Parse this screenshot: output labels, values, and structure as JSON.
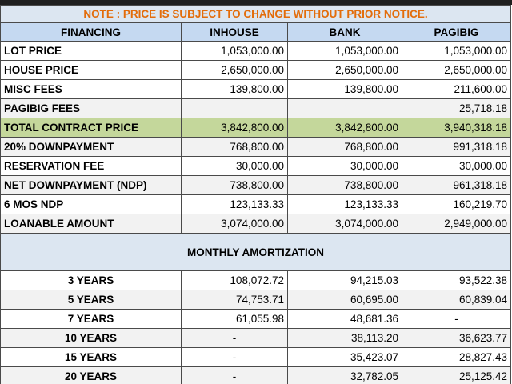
{
  "note": "NOTE : PRICE IS SUBJECT TO CHANGE WITHOUT PRIOR NOTICE.",
  "headers": [
    "FINANCING",
    "INHOUSE",
    "BANK",
    "PAGIBIG"
  ],
  "rows": [
    {
      "label": "LOT PRICE",
      "inhouse": "1,053,000.00",
      "bank": "1,053,000.00",
      "pagibig": "1,053,000.00"
    },
    {
      "label": "HOUSE PRICE",
      "inhouse": "2,650,000.00",
      "bank": "2,650,000.00",
      "pagibig": "2,650,000.00"
    },
    {
      "label": "MISC FEES",
      "inhouse": "139,800.00",
      "bank": "139,800.00",
      "pagibig": "211,600.00"
    },
    {
      "label": "PAGIBIG FEES",
      "inhouse": "",
      "bank": "",
      "pagibig": "25,718.18"
    },
    {
      "label": "TOTAL CONTRACT PRICE",
      "inhouse": "3,842,800.00",
      "bank": "3,842,800.00",
      "pagibig": "3,940,318.18"
    },
    {
      "label": "20% DOWNPAYMENT",
      "inhouse": "768,800.00",
      "bank": "768,800.00",
      "pagibig": "991,318.18"
    },
    {
      "label": "RESERVATION FEE",
      "inhouse": "30,000.00",
      "bank": "30,000.00",
      "pagibig": "30,000.00"
    },
    {
      "label": "NET DOWNPAYMENT (NDP)",
      "inhouse": "738,800.00",
      "bank": "738,800.00",
      "pagibig": "961,318.18"
    },
    {
      "label": "6 MOS NDP",
      "inhouse": "123,133.33",
      "bank": "123,133.33",
      "pagibig": "160,219.70"
    },
    {
      "label": "LOANABLE AMOUNT",
      "inhouse": "3,074,000.00",
      "bank": "3,074,000.00",
      "pagibig": "2,949,000.00"
    }
  ],
  "amortization_title": "MONTHLY AMORTIZATION",
  "amortization": [
    {
      "term": "3 YEARS",
      "inhouse": "108,072.72",
      "bank": "94,215.03",
      "pagibig": "93,522.38"
    },
    {
      "term": "5 YEARS",
      "inhouse": "74,753.71",
      "bank": "60,695.00",
      "pagibig": "60,839.04"
    },
    {
      "term": "7 YEARS",
      "inhouse": "61,055.98",
      "bank": "48,681.36",
      "pagibig": "-"
    },
    {
      "term": "10 YEARS",
      "inhouse": "-",
      "bank": "38,113.20",
      "pagibig": "36,623.77"
    },
    {
      "term": "15 YEARS",
      "inhouse": "-",
      "bank": "35,423.07",
      "pagibig": "28,827.43"
    },
    {
      "term": "20 YEARS",
      "inhouse": "-",
      "bank": "32,782.05",
      "pagibig": "25,125.42"
    }
  ]
}
